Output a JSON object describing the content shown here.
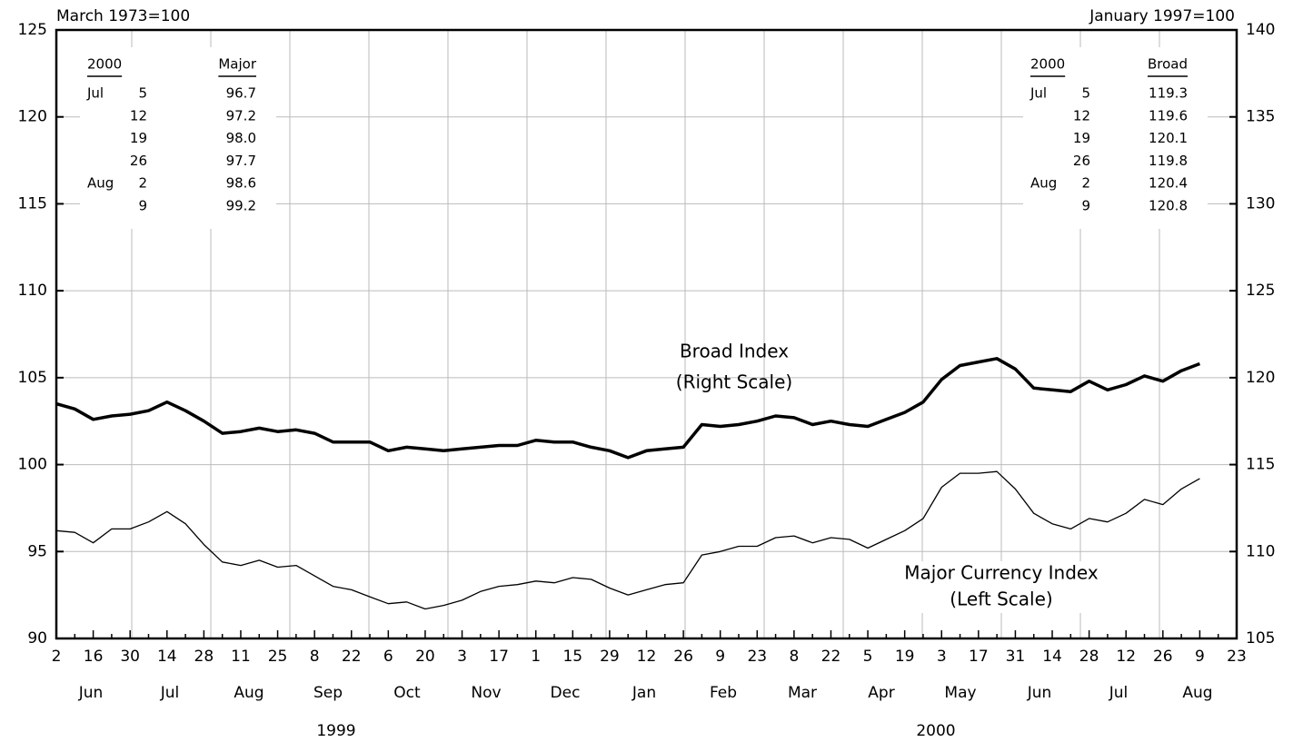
{
  "chart_data": {
    "type": "line",
    "left_note": "March 1973=100",
    "right_note": "January 1997=100",
    "categories": [
      "2",
      null,
      "16",
      null,
      "30",
      null,
      "14",
      null,
      "28",
      null,
      "11",
      null,
      "25",
      null,
      "8",
      null,
      "22",
      null,
      "6",
      null,
      "20",
      null,
      "3",
      null,
      "17",
      null,
      "1",
      null,
      "15",
      null,
      "29",
      null,
      "12",
      null,
      "26",
      null,
      "9",
      null,
      "23",
      null,
      "8",
      null,
      "22",
      null,
      "5",
      null,
      "19",
      null,
      "3",
      null,
      "17",
      null,
      "31",
      null,
      "14",
      null,
      "28",
      null,
      "12",
      null,
      "26",
      null,
      "9",
      null,
      "23"
    ],
    "months": [
      "Jun",
      "Jul",
      "Aug",
      "Sep",
      "Oct",
      "Nov",
      "Dec",
      "Jan",
      "Feb",
      "Mar",
      "Apr",
      "May",
      "Jun",
      "Jul",
      "Aug"
    ],
    "years": [
      "1999",
      "2000"
    ],
    "series": [
      {
        "name": "Broad Index",
        "note": "(Right Scale)",
        "axis": "y2",
        "color": "#000",
        "values": [
          118.5,
          118.2,
          117.6,
          117.8,
          117.9,
          118.1,
          118.6,
          118.1,
          117.5,
          116.8,
          116.9,
          117.1,
          116.9,
          117.0,
          116.8,
          116.3,
          116.3,
          116.3,
          115.8,
          116.0,
          115.9,
          115.8,
          115.9,
          116.0,
          116.1,
          116.1,
          116.4,
          116.3,
          116.3,
          116.0,
          115.8,
          115.4,
          115.8,
          115.9,
          116.0,
          117.3,
          117.2,
          117.3,
          117.5,
          117.8,
          117.7,
          117.3,
          117.5,
          117.3,
          117.2,
          117.6,
          118.0,
          118.6,
          119.9,
          120.7,
          120.9,
          121.1,
          120.5,
          119.4,
          119.3,
          119.2,
          119.8,
          119.3,
          119.6,
          120.1,
          119.8,
          120.4,
          120.8,
          null,
          null
        ]
      },
      {
        "name": "Major Currency Index",
        "note": "(Left Scale)",
        "color": "#000",
        "values": [
          96.2,
          96.1,
          95.5,
          96.3,
          96.3,
          96.7,
          97.3,
          96.6,
          95.4,
          94.4,
          94.2,
          94.5,
          94.1,
          94.2,
          93.6,
          93.0,
          92.8,
          92.4,
          92.0,
          92.1,
          91.7,
          91.9,
          92.2,
          92.7,
          93.0,
          93.1,
          93.3,
          93.2,
          93.5,
          93.4,
          92.9,
          92.5,
          92.8,
          93.1,
          93.2,
          94.8,
          95.0,
          95.3,
          95.3,
          95.8,
          95.9,
          95.5,
          95.8,
          95.7,
          95.2,
          95.7,
          96.2,
          96.9,
          98.7,
          99.5,
          99.5,
          99.6,
          98.6,
          97.2,
          96.6,
          96.3,
          96.9,
          96.7,
          97.2,
          98.0,
          97.7,
          98.6,
          99.2,
          null,
          null
        ]
      }
    ],
    "ylim": [
      90,
      125
    ],
    "yticks": [
      90,
      95,
      100,
      105,
      110,
      115,
      120,
      125
    ],
    "y2lim": [
      105,
      140
    ],
    "y2ticks": [
      105,
      110,
      115,
      120,
      125,
      130,
      135,
      140
    ],
    "grid": true,
    "tables": [
      {
        "header": [
          "2000",
          "Major"
        ],
        "rows": [
          [
            "Jul",
            "5",
            "96.7"
          ],
          [
            "",
            "12",
            "97.2"
          ],
          [
            "",
            "19",
            "98.0"
          ],
          [
            "",
            "26",
            "97.7"
          ],
          [
            "Aug",
            "2",
            "98.6"
          ],
          [
            "",
            "9",
            "99.2"
          ]
        ]
      },
      {
        "header": [
          "2000",
          "Broad"
        ],
        "rows": [
          [
            "Jul",
            "5",
            "119.3"
          ],
          [
            "",
            "12",
            "119.6"
          ],
          [
            "",
            "19",
            "120.1"
          ],
          [
            "",
            "26",
            "119.8"
          ],
          [
            "Aug",
            "2",
            "120.4"
          ],
          [
            "",
            "9",
            "120.8"
          ]
        ]
      }
    ]
  }
}
